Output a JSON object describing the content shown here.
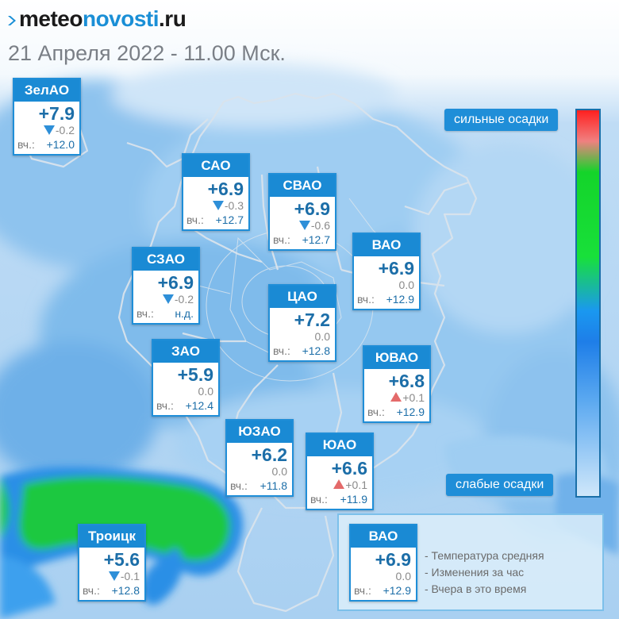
{
  "header": {
    "logo_part1": "meteo",
    "logo_part2": "novosti",
    "logo_part3": ".ru",
    "date_title": "21 Апреля 2022 - 11.00 Мск."
  },
  "yesterday_label": "вч.:",
  "districts": [
    {
      "name": "ЗелАО",
      "temp": "+7.9",
      "change": "-0.2",
      "trend": "down",
      "yesterday": "+12.0"
    },
    {
      "name": "САО",
      "temp": "+6.9",
      "change": "-0.3",
      "trend": "down",
      "yesterday": "+12.7"
    },
    {
      "name": "СВАО",
      "temp": "+6.9",
      "change": "-0.6",
      "trend": "down",
      "yesterday": "+12.7"
    },
    {
      "name": "ВАО",
      "temp": "+6.9",
      "change": "0.0",
      "trend": "none",
      "yesterday": "+12.9"
    },
    {
      "name": "СЗАО",
      "temp": "+6.9",
      "change": "-0.2",
      "trend": "down",
      "yesterday": "н.д."
    },
    {
      "name": "ЦАО",
      "temp": "+7.2",
      "change": "0.0",
      "trend": "none",
      "yesterday": "+12.8"
    },
    {
      "name": "ЗАО",
      "temp": "+5.9",
      "change": "0.0",
      "trend": "none",
      "yesterday": "+12.4"
    },
    {
      "name": "ЮВАО",
      "temp": "+6.8",
      "change": "+0.1",
      "trend": "up",
      "yesterday": "+12.9"
    },
    {
      "name": "ЮЗАО",
      "temp": "+6.2",
      "change": "0.0",
      "trend": "none",
      "yesterday": "+11.8"
    },
    {
      "name": "ЮАО",
      "temp": "+6.6",
      "change": "+0.1",
      "trend": "up",
      "yesterday": "+11.9"
    },
    {
      "name": "Троицк",
      "temp": "+5.6",
      "change": "-0.1",
      "trend": "down",
      "yesterday": "+12.8"
    }
  ],
  "scale": {
    "top_label": "сильные осадки",
    "bottom_label": "слабые осадки"
  },
  "legend": {
    "sample": {
      "name": "ВАО",
      "temp": "+6.9",
      "change": "0.0",
      "yesterday": "+12.9"
    },
    "line1": "- Температура средняя",
    "line2": "- Изменения за час",
    "line3": "- Вчера в это время"
  },
  "colors": {
    "accent": "#1a8ad4",
    "temp_text": "#1c6ea8",
    "trend_down": "#2e8fd8",
    "trend_up": "#e46a6a",
    "precip_green": "#18d03a",
    "precip_blue": "#2a8ee8"
  }
}
